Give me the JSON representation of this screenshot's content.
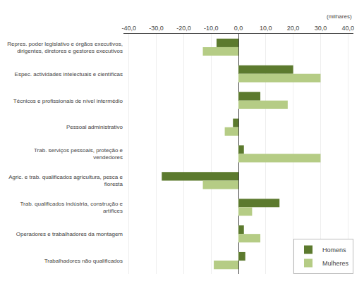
{
  "chart_data": {
    "type": "bar",
    "orientation": "horizontal",
    "categories": [
      "Repres. poder legislativo e órgãos executivos,\ndirigentes, diretores e gestores executivos",
      "Espec. actividades intelectuais e científicas",
      "Técnicos e profissionais de nível intermédio",
      "Pessoal administrativo",
      "Trab. serviços pessoais, proteção e\nvendedores",
      "Agric. e trab. qualificados agricultura, pesca e\nfloresta",
      "Trab. qualificados indústria, construção e\nartífices",
      "Operadores e trabalhadores da montagem",
      "Trabalhadores não qualificados"
    ],
    "series": [
      {
        "name": "Homens",
        "color": "#5c7a2e",
        "values": [
          -8.0,
          20.0,
          8.0,
          -2.0,
          2.0,
          -28.0,
          15.0,
          2.0,
          2.5
        ]
      },
      {
        "name": "Mulheres",
        "color": "#b5cc85",
        "values": [
          -13.0,
          30.0,
          18.0,
          -5.0,
          30.0,
          -13.0,
          5.0,
          8.0,
          -9.0
        ]
      }
    ],
    "xlim": [
      -42,
      42
    ],
    "xticks": [
      {
        "value": -40,
        "label": "-40,0"
      },
      {
        "value": -30,
        "label": "-30,0"
      },
      {
        "value": -20,
        "label": "-20,0"
      },
      {
        "value": -10,
        "label": "-10,0"
      },
      {
        "value": 0,
        "label": "0,0"
      },
      {
        "value": 10,
        "label": "10,0"
      },
      {
        "value": 20,
        "label": "20,0"
      },
      {
        "value": 30,
        "label": "30,0"
      },
      {
        "value": 40,
        "label": "40,0"
      }
    ],
    "annotations": [
      "(milhares)"
    ],
    "grid": true,
    "legend": "lower right"
  }
}
